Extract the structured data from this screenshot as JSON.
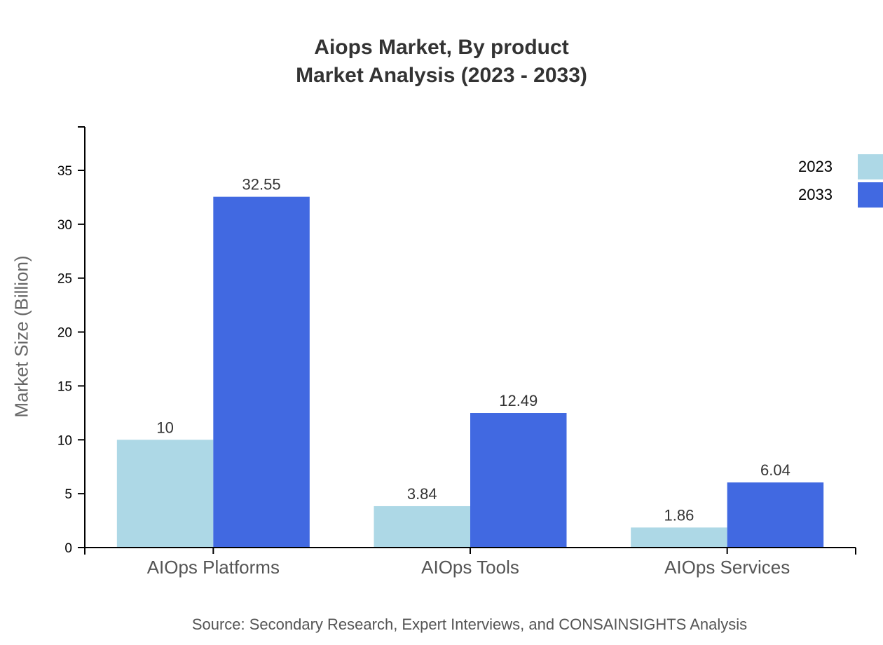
{
  "title": {
    "line1": "Aiops Market, By product",
    "line2": "Market Analysis (2023 - 2033)"
  },
  "source": "Source: Secondary Research, Expert Interviews, and CONSAINSIGHTS Analysis",
  "colors": {
    "series_2023": "#add8e6",
    "series_2033": "#4169e1",
    "axis": "#000000",
    "title": "#333333",
    "label": "#333333"
  },
  "legend": [
    {
      "label": "2023",
      "color": "#add8e6"
    },
    {
      "label": "2033",
      "color": "#4169e1"
    }
  ],
  "chart_data": {
    "type": "bar",
    "title": "Aiops Market, By product Market Analysis (2023 - 2033)",
    "xlabel": "",
    "ylabel": "Market Size (Billion)",
    "categories": [
      "AIOps Platforms",
      "AIOps Tools",
      "AIOps Services"
    ],
    "series": [
      {
        "name": "2023",
        "values": [
          10,
          3.84,
          1.86
        ],
        "labels": [
          "10",
          "3.84",
          "1.86"
        ]
      },
      {
        "name": "2033",
        "values": [
          32.55,
          12.49,
          6.04
        ],
        "labels": [
          "32.55",
          "12.49",
          "6.04"
        ]
      }
    ],
    "yticks": [
      0,
      5,
      10,
      15,
      20,
      25,
      30,
      35
    ],
    "ylim": [
      0,
      39
    ],
    "grid": false,
    "legend_position": "top-right",
    "source": "Source: Secondary Research, Expert Interviews, and CONSAINSIGHTS Analysis"
  }
}
